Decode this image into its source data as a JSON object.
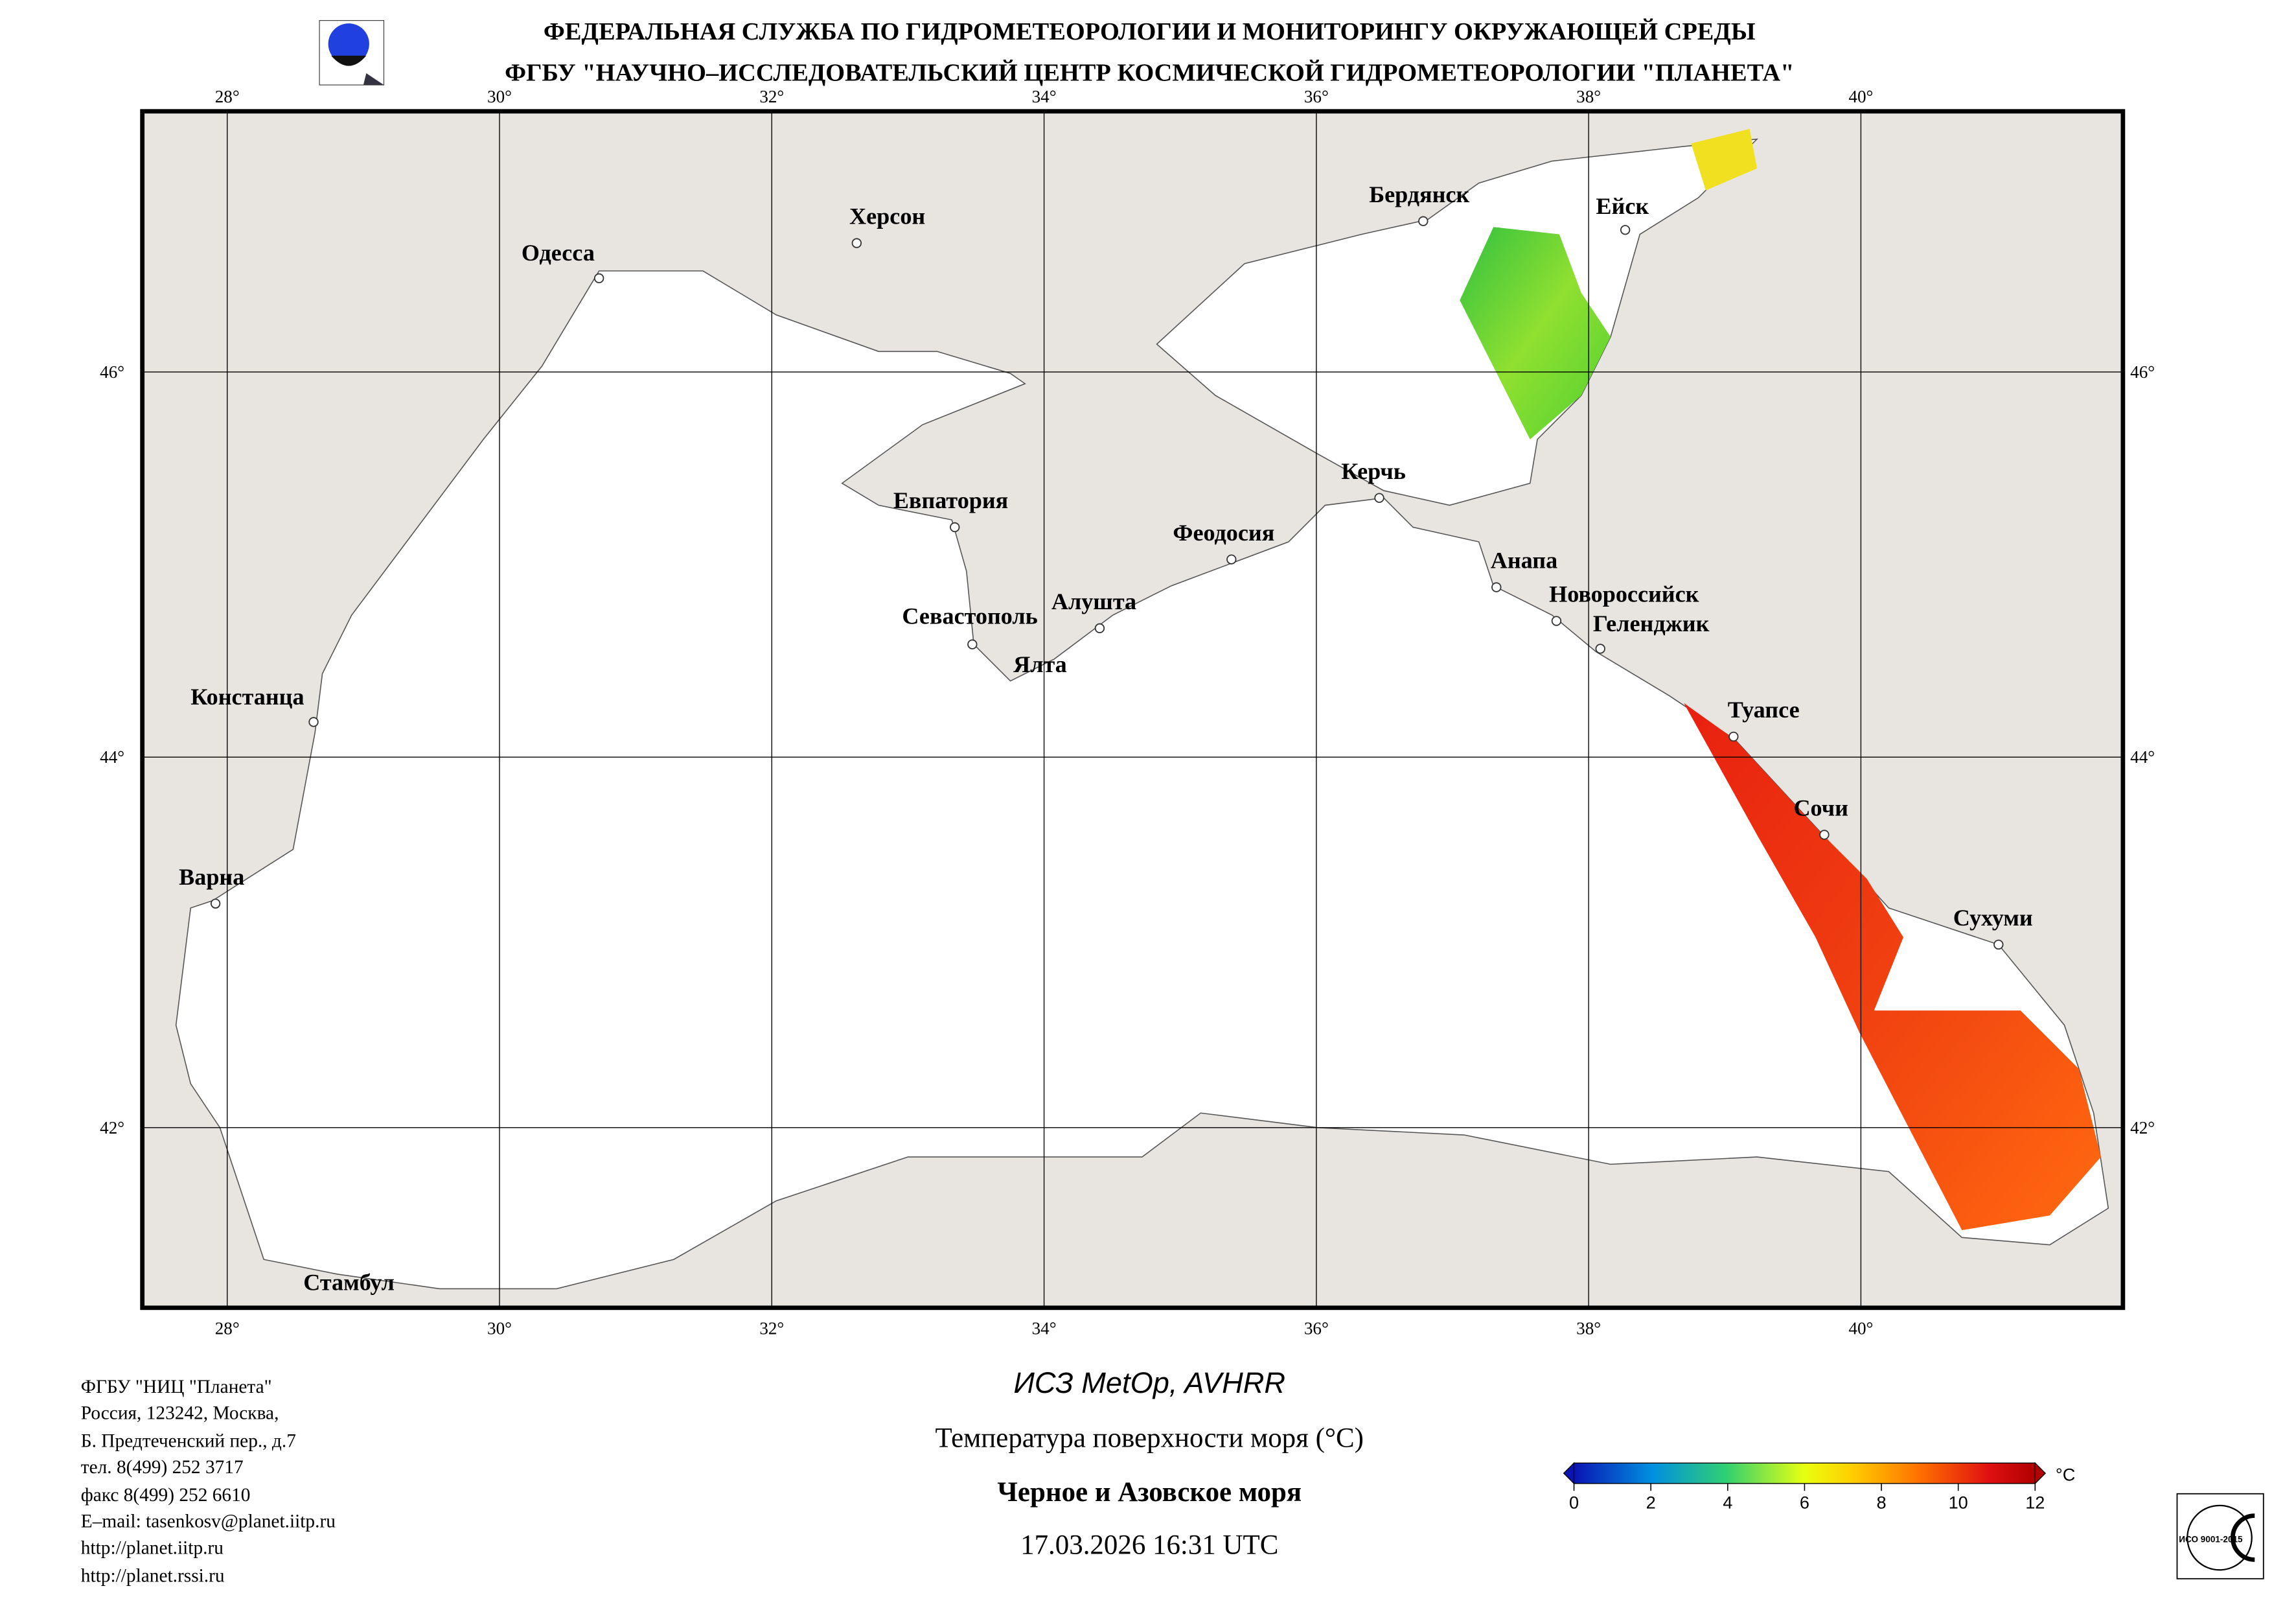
{
  "header": {
    "line1": "ФЕДЕРАЛЬНАЯ СЛУЖБА ПО ГИДРОМЕТЕОРОЛОГИИ И МОНИТОРИНГУ ОКРУЖАЮЩЕЙ СРЕДЫ",
    "line2": "ФГБУ \"НАУЧНО–ИССЛЕДОВАТЕЛЬСКИЙ ЦЕНТР КОСМИЧЕСКОЙ ГИДРОМЕТЕОРОЛОГИИ \"ПЛАНЕТА\""
  },
  "map": {
    "lon_labels": [
      "28°",
      "30°",
      "32°",
      "34°",
      "36°",
      "38°",
      "40°"
    ],
    "lat_labels": [
      "46°",
      "44°",
      "42°"
    ],
    "cities": [
      "Одесса",
      "Херсон",
      "Бердянск",
      "Ейск",
      "Евпатория",
      "Керчь",
      "Феодосия",
      "Анапа",
      "Новороссийск",
      "Геленджик",
      "Алушта",
      "Севастополь",
      "Ялта",
      "Констанца",
      "Туапсе",
      "Сочи",
      "Сухуми",
      "Варна",
      "Стамбул"
    ],
    "colors": {
      "land": "#e8e5e1",
      "sea": "#ffffff"
    }
  },
  "footer": {
    "address": [
      "ФГБУ \"НИЦ \"Планета\"",
      "Россия, 123242, Москва,",
      "Б. Предтеченский пер., д.7",
      "тел. 8(499) 252 3717",
      "факс 8(499) 252 6610",
      "E–mail: tasenkosv@planet.iitp.ru",
      "http://planet.iitp.ru",
      "http://planet.rssi.ru"
    ],
    "satellite": "ИСЗ MetOp, AVHRR",
    "product": "Температура поверхности моря (°C)",
    "region": "Черное и Азовское моря",
    "datetime": "17.03.2026 16:31 UTC"
  },
  "colorbar": {
    "unit": "°C",
    "ticks": [
      "0",
      "2",
      "4",
      "6",
      "8",
      "10",
      "12"
    ],
    "min": 0,
    "max": 12,
    "colors": [
      "#0a14b4",
      "#00a0e0",
      "#30d070",
      "#c8f020",
      "#ffd800",
      "#ff7a00",
      "#e01010",
      "#b00000"
    ]
  },
  "iso_badge": {
    "text": "ИСО 9001-2015"
  }
}
